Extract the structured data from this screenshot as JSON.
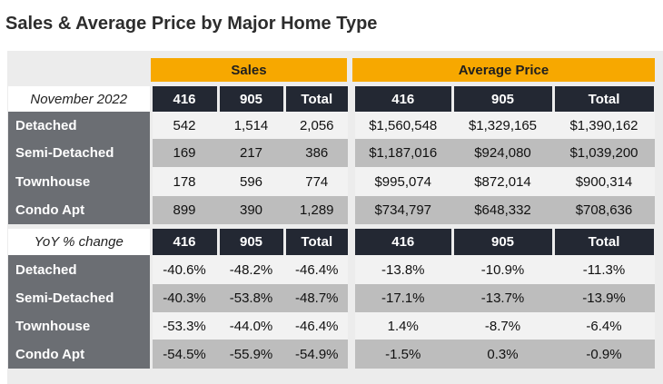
{
  "title": "Sales & Average Price by Major Home Type",
  "groups": {
    "sales": "Sales",
    "avg_price": "Average Price"
  },
  "columns": [
    "416",
    "905",
    "Total",
    "416",
    "905",
    "Total"
  ],
  "sections": [
    {
      "label": "November 2022",
      "rows": [
        {
          "name": "Detached",
          "values": [
            "542",
            "1,514",
            "2,056",
            "$1,560,548",
            "$1,329,165",
            "$1,390,162"
          ]
        },
        {
          "name": "Semi-Detached",
          "values": [
            "169",
            "217",
            "386",
            "$1,187,016",
            "$924,080",
            "$1,039,200"
          ]
        },
        {
          "name": "Townhouse",
          "values": [
            "178",
            "596",
            "774",
            "$995,074",
            "$872,014",
            "$900,314"
          ]
        },
        {
          "name": "Condo Apt",
          "values": [
            "899",
            "390",
            "1,289",
            "$734,797",
            "$648,332",
            "$708,636"
          ]
        }
      ]
    },
    {
      "label": "YoY % change",
      "rows": [
        {
          "name": "Detached",
          "values": [
            "-40.6%",
            "-48.2%",
            "-46.4%",
            "-13.8%",
            "-10.9%",
            "-11.3%"
          ]
        },
        {
          "name": "Semi-Detached",
          "values": [
            "-40.3%",
            "-53.8%",
            "-48.7%",
            "-17.1%",
            "-13.7%",
            "-13.9%"
          ]
        },
        {
          "name": "Townhouse",
          "values": [
            "-53.3%",
            "-44.0%",
            "-46.4%",
            "1.4%",
            "-8.7%",
            "-6.4%"
          ]
        },
        {
          "name": "Condo Apt",
          "values": [
            "-54.5%",
            "-55.9%",
            "-54.9%",
            "-1.5%",
            "0.3%",
            "-0.9%"
          ]
        }
      ]
    }
  ]
}
